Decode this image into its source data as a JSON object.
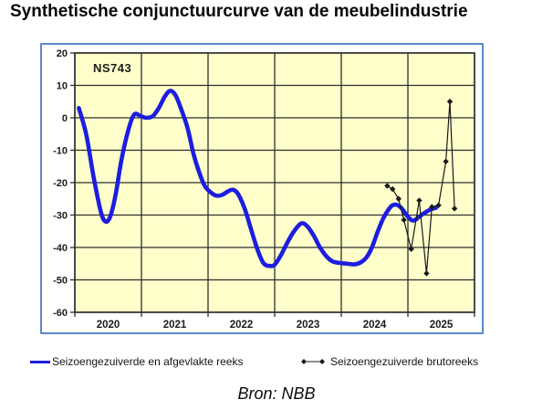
{
  "page": {
    "title": "Synthetische conjunctuurcurve van de meubelindustrie",
    "source": "Bron: NBB"
  },
  "legend": {
    "items": [
      {
        "id": "smoothed",
        "label": "Seizoengezuiverde en afgevlakte reeks",
        "swatch": "blue-line"
      },
      {
        "id": "bruto",
        "label": "Seizoengezuiverde brutoreeks",
        "swatch": "diamond-line"
      }
    ]
  },
  "colors": {
    "frame_border": "#5b8ac6",
    "plot_background": "#ffffcc",
    "gridline": "#2e2e2e",
    "smoothed_line": "#1d1de0",
    "bruto_line": "#1a1a1a",
    "axis_text": "#1c1c1c"
  },
  "chart_data": {
    "type": "line",
    "title": "Synthetische conjunctuurcurve van de meubelindustrie",
    "inner_label": "NS743",
    "grid": true,
    "legend_position": "bottom",
    "x_axis": {
      "min": 2020,
      "max": 2026,
      "gridline_step": 1,
      "year_labels": [
        "2020",
        "2021",
        "2022",
        "2023",
        "2024",
        "2025"
      ]
    },
    "y_axis": {
      "min": -60,
      "max": 20,
      "tick_step": 10,
      "tick_labels": [
        "20",
        "10",
        "0",
        "-10",
        "-20",
        "-30",
        "-40",
        "-50",
        "-60"
      ]
    },
    "series": [
      {
        "name": "Seizoengezuiverde en afgevlakte reeks",
        "style": "smooth-thick-line",
        "color": "#1d1de0",
        "stroke_width": 4.6,
        "points": [
          [
            2020.06,
            3
          ],
          [
            2020.17,
            -5
          ],
          [
            2020.28,
            -18
          ],
          [
            2020.39,
            -29
          ],
          [
            2020.46,
            -32
          ],
          [
            2020.53,
            -30.5
          ],
          [
            2020.61,
            -24
          ],
          [
            2020.7,
            -13
          ],
          [
            2020.8,
            -4
          ],
          [
            2020.89,
            1
          ],
          [
            2020.99,
            0.5
          ],
          [
            2021.07,
            0
          ],
          [
            2021.17,
            0.5
          ],
          [
            2021.26,
            3
          ],
          [
            2021.35,
            6.5
          ],
          [
            2021.43,
            8.3
          ],
          [
            2021.51,
            7
          ],
          [
            2021.59,
            3
          ],
          [
            2021.69,
            -3
          ],
          [
            2021.78,
            -11
          ],
          [
            2021.87,
            -17
          ],
          [
            2021.95,
            -21
          ],
          [
            2022.04,
            -23
          ],
          [
            2022.12,
            -24
          ],
          [
            2022.21,
            -23.8
          ],
          [
            2022.29,
            -22.8
          ],
          [
            2022.37,
            -22.2
          ],
          [
            2022.45,
            -23.5
          ],
          [
            2022.55,
            -28
          ],
          [
            2022.64,
            -34
          ],
          [
            2022.74,
            -40.5
          ],
          [
            2022.83,
            -44.8
          ],
          [
            2022.92,
            -45.7
          ],
          [
            2023.0,
            -45.3
          ],
          [
            2023.09,
            -42.5
          ],
          [
            2023.19,
            -38.5
          ],
          [
            2023.29,
            -35
          ],
          [
            2023.4,
            -32.6
          ],
          [
            2023.49,
            -33.5
          ],
          [
            2023.59,
            -36.5
          ],
          [
            2023.68,
            -40
          ],
          [
            2023.78,
            -42.8
          ],
          [
            2023.87,
            -44.3
          ],
          [
            2023.98,
            -44.8
          ],
          [
            2024.09,
            -45
          ],
          [
            2024.2,
            -45.2
          ],
          [
            2024.3,
            -44.5
          ],
          [
            2024.38,
            -43
          ],
          [
            2024.46,
            -40
          ],
          [
            2024.54,
            -35.5
          ],
          [
            2024.63,
            -31
          ],
          [
            2024.71,
            -28.3
          ],
          [
            2024.77,
            -27
          ],
          [
            2024.84,
            -26.9
          ],
          [
            2024.91,
            -28
          ],
          [
            2024.98,
            -30
          ],
          [
            2025.05,
            -31.5
          ],
          [
            2025.1,
            -31.6
          ],
          [
            2025.17,
            -30.5
          ],
          [
            2025.24,
            -29.5
          ],
          [
            2025.31,
            -28.6
          ],
          [
            2025.36,
            -28.1
          ],
          [
            2025.42,
            -27.8
          ]
        ]
      },
      {
        "name": "Seizoengezuiverde brutoreeks",
        "style": "thin-line-diamond-markers",
        "color": "#1a1a1a",
        "stroke_width": 1.2,
        "marker": "diamond",
        "points": [
          [
            2024.69,
            -21
          ],
          [
            2024.77,
            -22
          ],
          [
            2024.86,
            -25
          ],
          [
            2024.94,
            -31.5
          ],
          [
            2025.05,
            -40.5
          ],
          [
            2025.17,
            -25.5
          ],
          [
            2025.28,
            -48
          ],
          [
            2025.36,
            -27.5
          ],
          [
            2025.46,
            -27
          ],
          [
            2025.57,
            -13.5
          ],
          [
            2025.63,
            5
          ],
          [
            2025.7,
            -28
          ]
        ]
      }
    ]
  }
}
